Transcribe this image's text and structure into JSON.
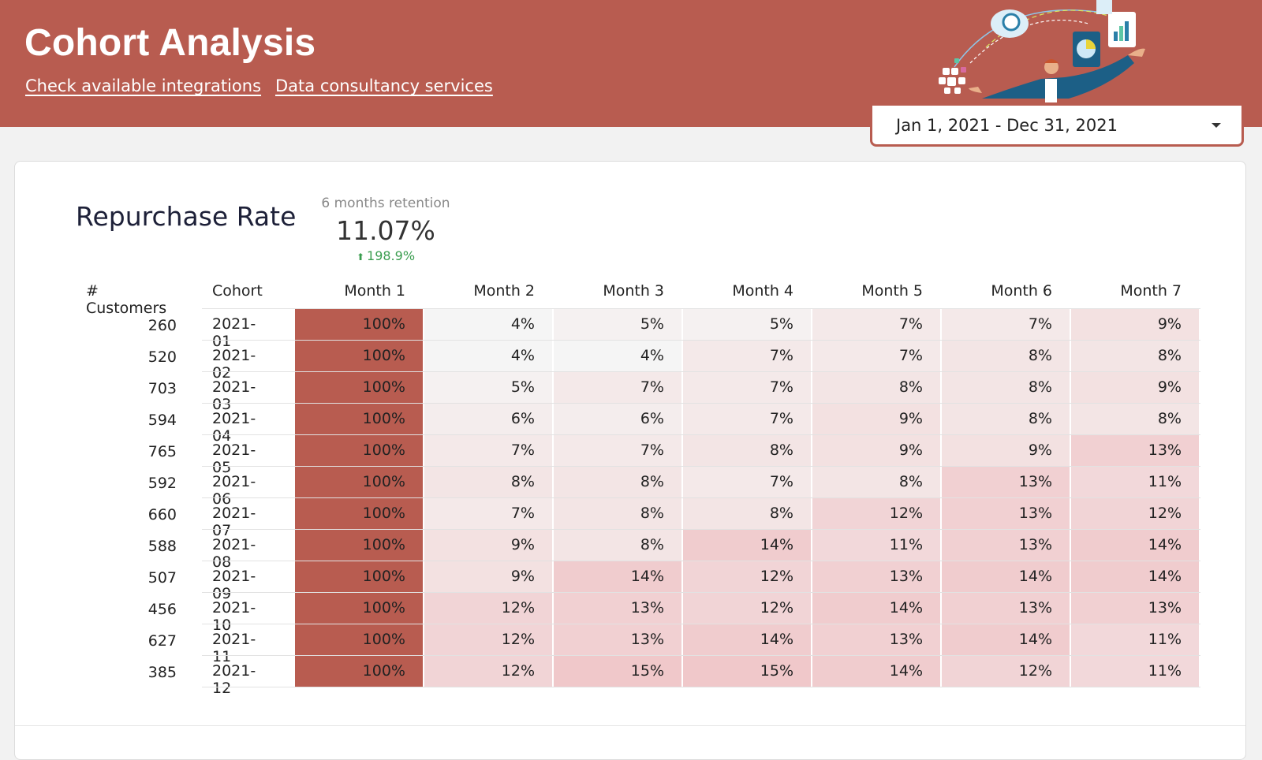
{
  "header": {
    "title": "Cohort Analysis",
    "links": [
      "Check available integrations",
      "Data consultancy services"
    ],
    "date_range": "Jan 1, 2021 - Dec 31, 2021"
  },
  "card": {
    "title": "Repurchase Rate",
    "kpi": {
      "label": "6 months retention",
      "value": "11.07%",
      "change": "198.9%"
    }
  },
  "table": {
    "headers": {
      "customers": "# Customers",
      "cohort": "Cohort",
      "months": [
        "Month 1",
        "Month 2",
        "Month 3",
        "Month 4",
        "Month 5",
        "Month 6",
        "Month 7"
      ]
    },
    "rows": [
      {
        "customers": "260",
        "cohort": "2021-01",
        "values": [
          100,
          4,
          5,
          5,
          7,
          7,
          9
        ]
      },
      {
        "customers": "520",
        "cohort": "2021-02",
        "values": [
          100,
          4,
          4,
          7,
          7,
          8,
          8
        ]
      },
      {
        "customers": "703",
        "cohort": "2021-03",
        "values": [
          100,
          5,
          7,
          7,
          8,
          8,
          9
        ]
      },
      {
        "customers": "594",
        "cohort": "2021-04",
        "values": [
          100,
          6,
          6,
          7,
          9,
          8,
          8
        ]
      },
      {
        "customers": "765",
        "cohort": "2021-05",
        "values": [
          100,
          7,
          7,
          8,
          9,
          9,
          13
        ]
      },
      {
        "customers": "592",
        "cohort": "2021-06",
        "values": [
          100,
          8,
          8,
          7,
          8,
          13,
          11
        ]
      },
      {
        "customers": "660",
        "cohort": "2021-07",
        "values": [
          100,
          7,
          8,
          8,
          12,
          13,
          12
        ]
      },
      {
        "customers": "588",
        "cohort": "2021-08",
        "values": [
          100,
          9,
          8,
          14,
          11,
          13,
          14
        ]
      },
      {
        "customers": "507",
        "cohort": "2021-09",
        "values": [
          100,
          9,
          14,
          12,
          13,
          14,
          14
        ]
      },
      {
        "customers": "456",
        "cohort": "2021-10",
        "values": [
          100,
          12,
          13,
          12,
          14,
          13,
          13
        ]
      },
      {
        "customers": "627",
        "cohort": "2021-11",
        "values": [
          100,
          12,
          13,
          14,
          13,
          14,
          11
        ]
      },
      {
        "customers": "385",
        "cohort": "2021-12",
        "values": [
          100,
          12,
          15,
          15,
          14,
          12,
          11
        ]
      }
    ],
    "value_suffix": "%"
  },
  "colors": {
    "header_bg": "#b85c50",
    "max_cell": "#b85c50",
    "kpi_positive": "#3a9d4f"
  }
}
